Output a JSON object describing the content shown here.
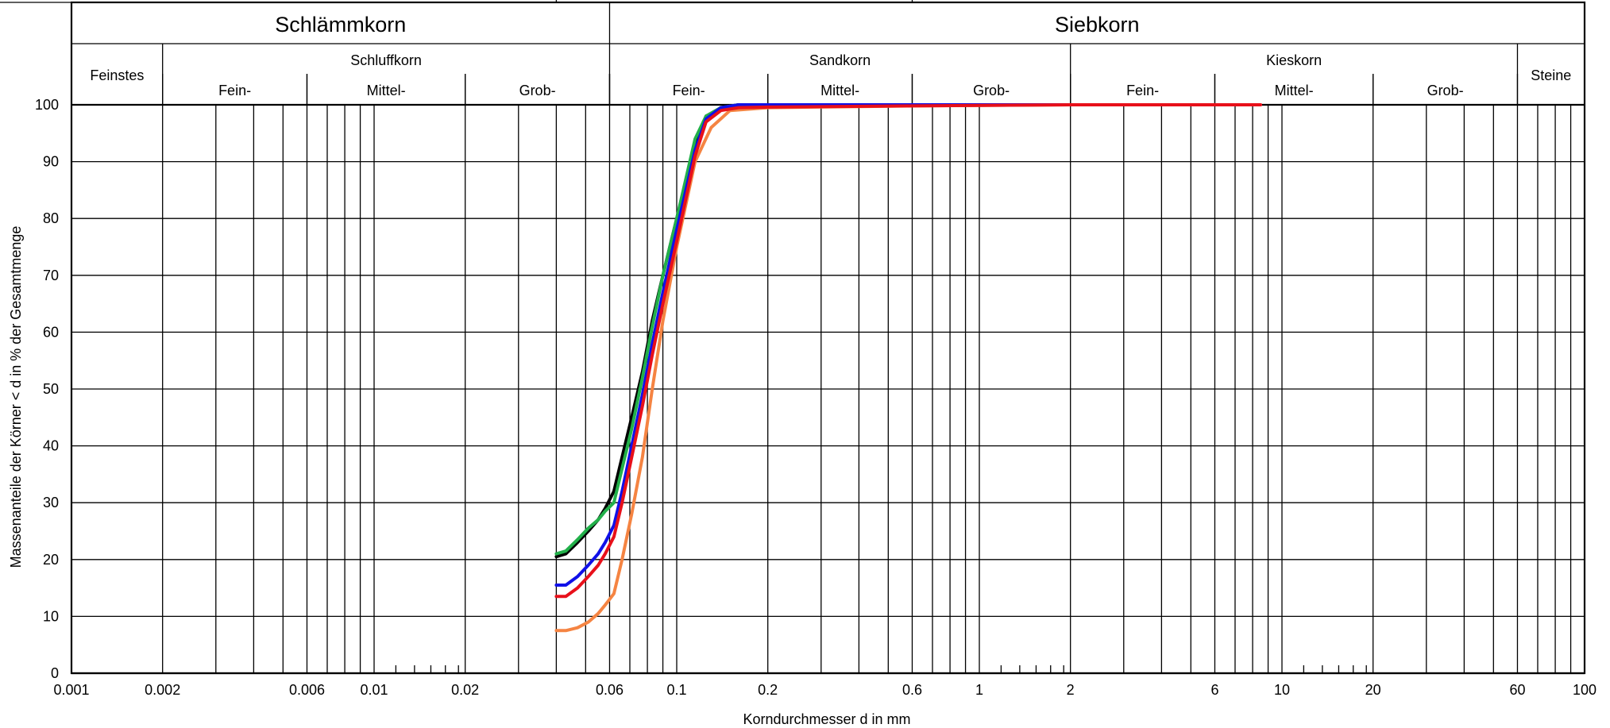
{
  "chart_data": {
    "type": "line",
    "xlabel": "Korndurchmesser d in mm",
    "ylabel": "Massenanteile der Körner < d in % der Gesamtmenge",
    "xscale": "log",
    "xlim": [
      0.001,
      100
    ],
    "ylim": [
      0,
      100
    ],
    "x_ticks": [
      {
        "v": 0.001,
        "label": "0.001"
      },
      {
        "v": 0.002,
        "label": "0.002"
      },
      {
        "v": 0.006,
        "label": "0.006"
      },
      {
        "v": 0.01,
        "label": "0.01"
      },
      {
        "v": 0.02,
        "label": "0.02"
      },
      {
        "v": 0.06,
        "label": "0.06"
      },
      {
        "v": 0.1,
        "label": "0.1"
      },
      {
        "v": 0.2,
        "label": "0.2"
      },
      {
        "v": 0.6,
        "label": "0.6"
      },
      {
        "v": 1,
        "label": "1"
      },
      {
        "v": 2,
        "label": "2"
      },
      {
        "v": 6,
        "label": "6"
      },
      {
        "v": 10,
        "label": "10"
      },
      {
        "v": 20,
        "label": "20"
      },
      {
        "v": 60,
        "label": "60"
      },
      {
        "v": 100,
        "label": "100"
      }
    ],
    "y_ticks": [
      "0",
      "10",
      "20",
      "30",
      "40",
      "50",
      "60",
      "70",
      "80",
      "90",
      "100"
    ],
    "grid": true,
    "header": {
      "top": [
        {
          "label": "Schlämmkorn",
          "from": 0.001,
          "to": 0.06
        },
        {
          "label": "Siebkorn",
          "from": 0.06,
          "to": 100
        }
      ],
      "middle": [
        {
          "label": "Feinstes",
          "from": 0.001,
          "to": 0.002
        },
        {
          "label": "Schluffkorn",
          "from": 0.002,
          "to": 0.06
        },
        {
          "label": "Sandkorn",
          "from": 0.06,
          "to": 2
        },
        {
          "label": "Kieskorn",
          "from": 2,
          "to": 60
        },
        {
          "label": "Steine",
          "from": 60,
          "to": 100
        }
      ],
      "sub": [
        {
          "label": "Fein-",
          "from": 0.002,
          "to": 0.006
        },
        {
          "label": "Mittel-",
          "from": 0.006,
          "to": 0.02
        },
        {
          "label": "Grob-",
          "from": 0.02,
          "to": 0.06
        },
        {
          "label": "Fein-",
          "from": 0.06,
          "to": 0.2
        },
        {
          "label": "Mittel-",
          "from": 0.2,
          "to": 0.6
        },
        {
          "label": "Grob-",
          "from": 0.6,
          "to": 2
        },
        {
          "label": "Fein-",
          "from": 2,
          "to": 6
        },
        {
          "label": "Mittel-",
          "from": 6,
          "to": 20
        },
        {
          "label": "Grob-",
          "from": 20,
          "to": 60
        }
      ]
    },
    "series": [
      {
        "color": "#f58442",
        "x": [
          0.04,
          0.043,
          0.047,
          0.051,
          0.055,
          0.058,
          0.062,
          0.066,
          0.071,
          0.077,
          0.083,
          0.09,
          0.1,
          0.115,
          0.13,
          0.15,
          0.2,
          0.6,
          2,
          8
        ],
        "y": [
          7.5,
          7.5,
          8,
          9,
          10.5,
          12,
          14,
          20,
          28,
          38,
          50,
          62,
          75,
          90,
          96,
          99,
          99.5,
          99.8,
          100,
          100
        ]
      },
      {
        "color": "#000000",
        "x": [
          0.04,
          0.043,
          0.047,
          0.051,
          0.055,
          0.058,
          0.062,
          0.066,
          0.071,
          0.077,
          0.083,
          0.09,
          0.1,
          0.115,
          0.125,
          0.14,
          0.16,
          0.2,
          0.6,
          2
        ],
        "y": [
          20.5,
          21,
          23,
          25,
          27,
          29,
          32,
          38,
          45,
          53,
          62,
          70,
          80,
          93,
          98,
          99.5,
          100,
          100,
          100,
          100
        ]
      },
      {
        "color": "#22b04a",
        "x": [
          0.04,
          0.043,
          0.047,
          0.051,
          0.055,
          0.058,
          0.062,
          0.066,
          0.071,
          0.077,
          0.083,
          0.09,
          0.1,
          0.115,
          0.125,
          0.14,
          0.16,
          0.2,
          0.6,
          2
        ],
        "y": [
          21,
          21.5,
          23.5,
          25.5,
          27,
          28.5,
          30,
          36,
          43,
          52,
          61,
          70,
          80,
          94,
          98,
          99.5,
          100,
          100,
          100,
          100
        ]
      },
      {
        "color": "#1010e8",
        "x": [
          0.04,
          0.043,
          0.047,
          0.051,
          0.055,
          0.058,
          0.062,
          0.066,
          0.071,
          0.077,
          0.083,
          0.09,
          0.1,
          0.115,
          0.125,
          0.14,
          0.16,
          0.2,
          0.6,
          2
        ],
        "y": [
          15.5,
          15.5,
          17,
          19,
          21,
          23,
          26,
          32,
          40,
          49,
          58,
          67,
          78,
          92,
          97.5,
          99.5,
          100,
          100,
          100,
          100
        ]
      },
      {
        "color": "#e8101a",
        "x": [
          0.04,
          0.043,
          0.047,
          0.051,
          0.055,
          0.058,
          0.062,
          0.066,
          0.071,
          0.077,
          0.083,
          0.09,
          0.1,
          0.115,
          0.125,
          0.14,
          0.16,
          0.2,
          0.6,
          2,
          8.5
        ],
        "y": [
          13.5,
          13.5,
          15,
          17,
          19,
          21,
          24,
          30,
          38,
          47,
          56,
          65,
          76,
          91,
          97,
          99,
          99.5,
          99.6,
          99.8,
          100,
          100
        ]
      }
    ]
  }
}
